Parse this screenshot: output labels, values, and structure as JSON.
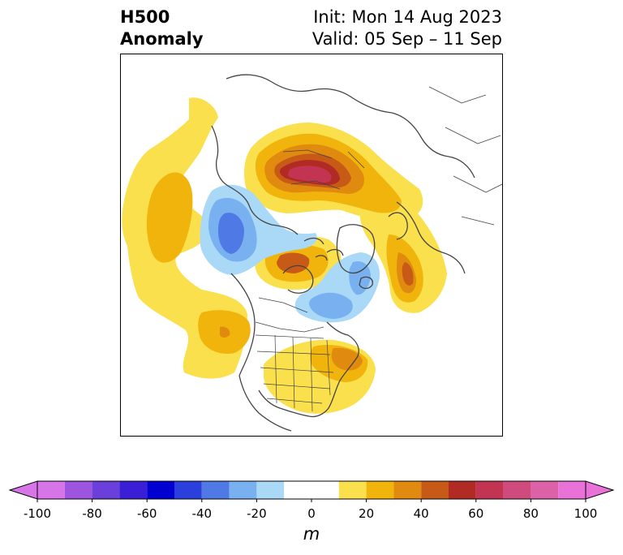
{
  "title": {
    "left_line1": "H500",
    "left_line2": "Anomaly",
    "init": "Init: Mon 14 Aug 2023",
    "valid": "Valid: 05 Sep – 11 Sep"
  },
  "colorbar": {
    "units": "m",
    "levels": [
      -100,
      -90,
      -80,
      -70,
      -60,
      -50,
      -40,
      -30,
      -20,
      -10,
      10,
      20,
      30,
      40,
      50,
      60,
      70,
      80,
      90,
      100
    ],
    "tick_labels": [
      "-100",
      "-80",
      "-60",
      "-40",
      "-20",
      "0",
      "20",
      "40",
      "60",
      "80",
      "100"
    ],
    "neg_colors": [
      "#d674e8",
      "#9d55e0",
      "#6b3fd9",
      "#3a1fd6",
      "#0000d0",
      "#2a3fdc",
      "#4f7ae6",
      "#78b0f0",
      "#a9d9f7"
    ],
    "pos_colors": [
      "#fae04c",
      "#f1b40c",
      "#e08a10",
      "#c85a18",
      "#b22a24",
      "#c23452",
      "#cf4b7e",
      "#dc62a8",
      "#e872d8"
    ],
    "under_color": "#d674e8",
    "over_color": "#e872d8"
  },
  "map": {
    "projection": "polar stereographic, North America / Arctic",
    "anomaly_centers": [
      {
        "name": "north-pacific-ridge",
        "sign": "positive",
        "peak_m": 20
      },
      {
        "name": "gulf-of-alaska-trough",
        "sign": "negative",
        "peak_m": -40
      },
      {
        "name": "hudson-bay-ridge",
        "sign": "positive",
        "peak_m": 50
      },
      {
        "name": "greenland-east-trough",
        "sign": "negative",
        "peak_m": -30
      },
      {
        "name": "eurasia-ridge",
        "sign": "positive",
        "peak_m": 40
      },
      {
        "name": "arctic-siberia-ridge",
        "sign": "positive",
        "peak_m": 70
      },
      {
        "name": "eastern-us-ridge",
        "sign": "positive",
        "peak_m": 30
      },
      {
        "name": "hawaii-ridge",
        "sign": "positive",
        "peak_m": 30
      }
    ]
  }
}
